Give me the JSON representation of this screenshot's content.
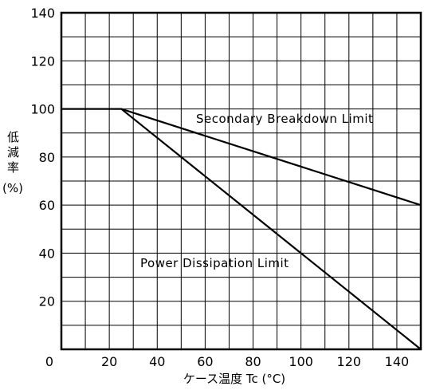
{
  "chart_data": {
    "type": "line",
    "xlabel": "ケース温度 Tc (°C)",
    "ylabel": [
      "低",
      "減",
      "率",
      "(%)"
    ],
    "xlim": [
      0,
      150
    ],
    "ylim": [
      0,
      140
    ],
    "x_ticks": [
      "0",
      "20",
      "40",
      "60",
      "80",
      "100",
      "120",
      "140"
    ],
    "y_ticks": [
      "20",
      "40",
      "60",
      "80",
      "100",
      "120",
      "140"
    ],
    "grid": true,
    "series": [
      {
        "name": "Secondary Breakdown Limit",
        "x": [
          0,
          25,
          150
        ],
        "y": [
          100,
          100,
          60
        ]
      },
      {
        "name": "Power Dissipation Limit",
        "x": [
          0,
          25,
          150
        ],
        "y": [
          100,
          100,
          0
        ]
      }
    ],
    "annotations": [
      {
        "text": "Secondary  Breakdown  Limit",
        "series": 0
      },
      {
        "text": "Power  Dissipation  Limit",
        "series": 1
      }
    ]
  }
}
